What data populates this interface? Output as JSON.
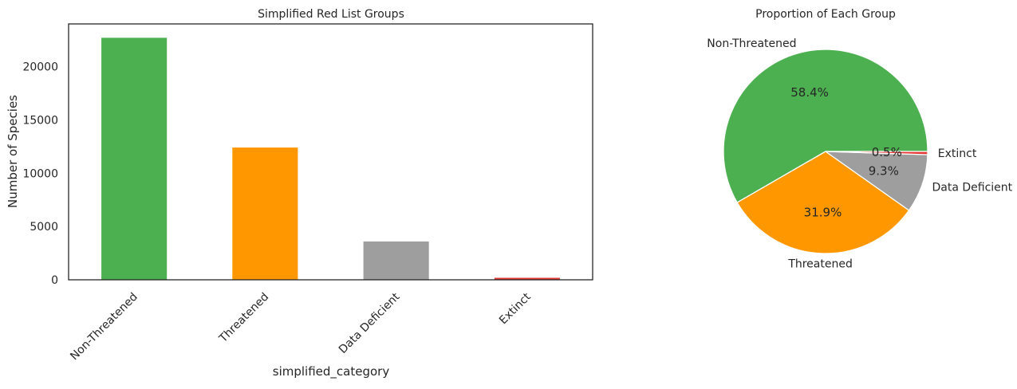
{
  "chart_data": [
    {
      "type": "bar",
      "title": "Simplified Red List Groups",
      "xlabel": "simplified_category",
      "ylabel": "Number of Species",
      "categories": [
        "Non-Threatened",
        "Threatened",
        "Data Deficient",
        "Extinct"
      ],
      "values": [
        22700,
        12400,
        3600,
        190
      ],
      "colors": [
        "#4caf50",
        "#ff9800",
        "#9e9e9e",
        "#e53935"
      ],
      "ylim": [
        0,
        24000
      ],
      "yticks": [
        0,
        5000,
        10000,
        15000,
        20000
      ],
      "ytick_labels": [
        "0",
        "5000",
        "10000",
        "15000",
        "20000"
      ],
      "grid": false,
      "legend": "none"
    },
    {
      "type": "pie",
      "title": "Proportion of Each Group",
      "labels": [
        "Non-Threatened",
        "Threatened",
        "Data Deficient",
        "Extinct"
      ],
      "values": [
        58.4,
        31.9,
        9.3,
        0.5
      ],
      "pct_labels": [
        "58.4%",
        "31.9%",
        "9.3%",
        "0.5%"
      ],
      "colors": [
        "#4caf50",
        "#ff9800",
        "#9e9e9e",
        "#e53935"
      ],
      "legend": "none"
    }
  ]
}
